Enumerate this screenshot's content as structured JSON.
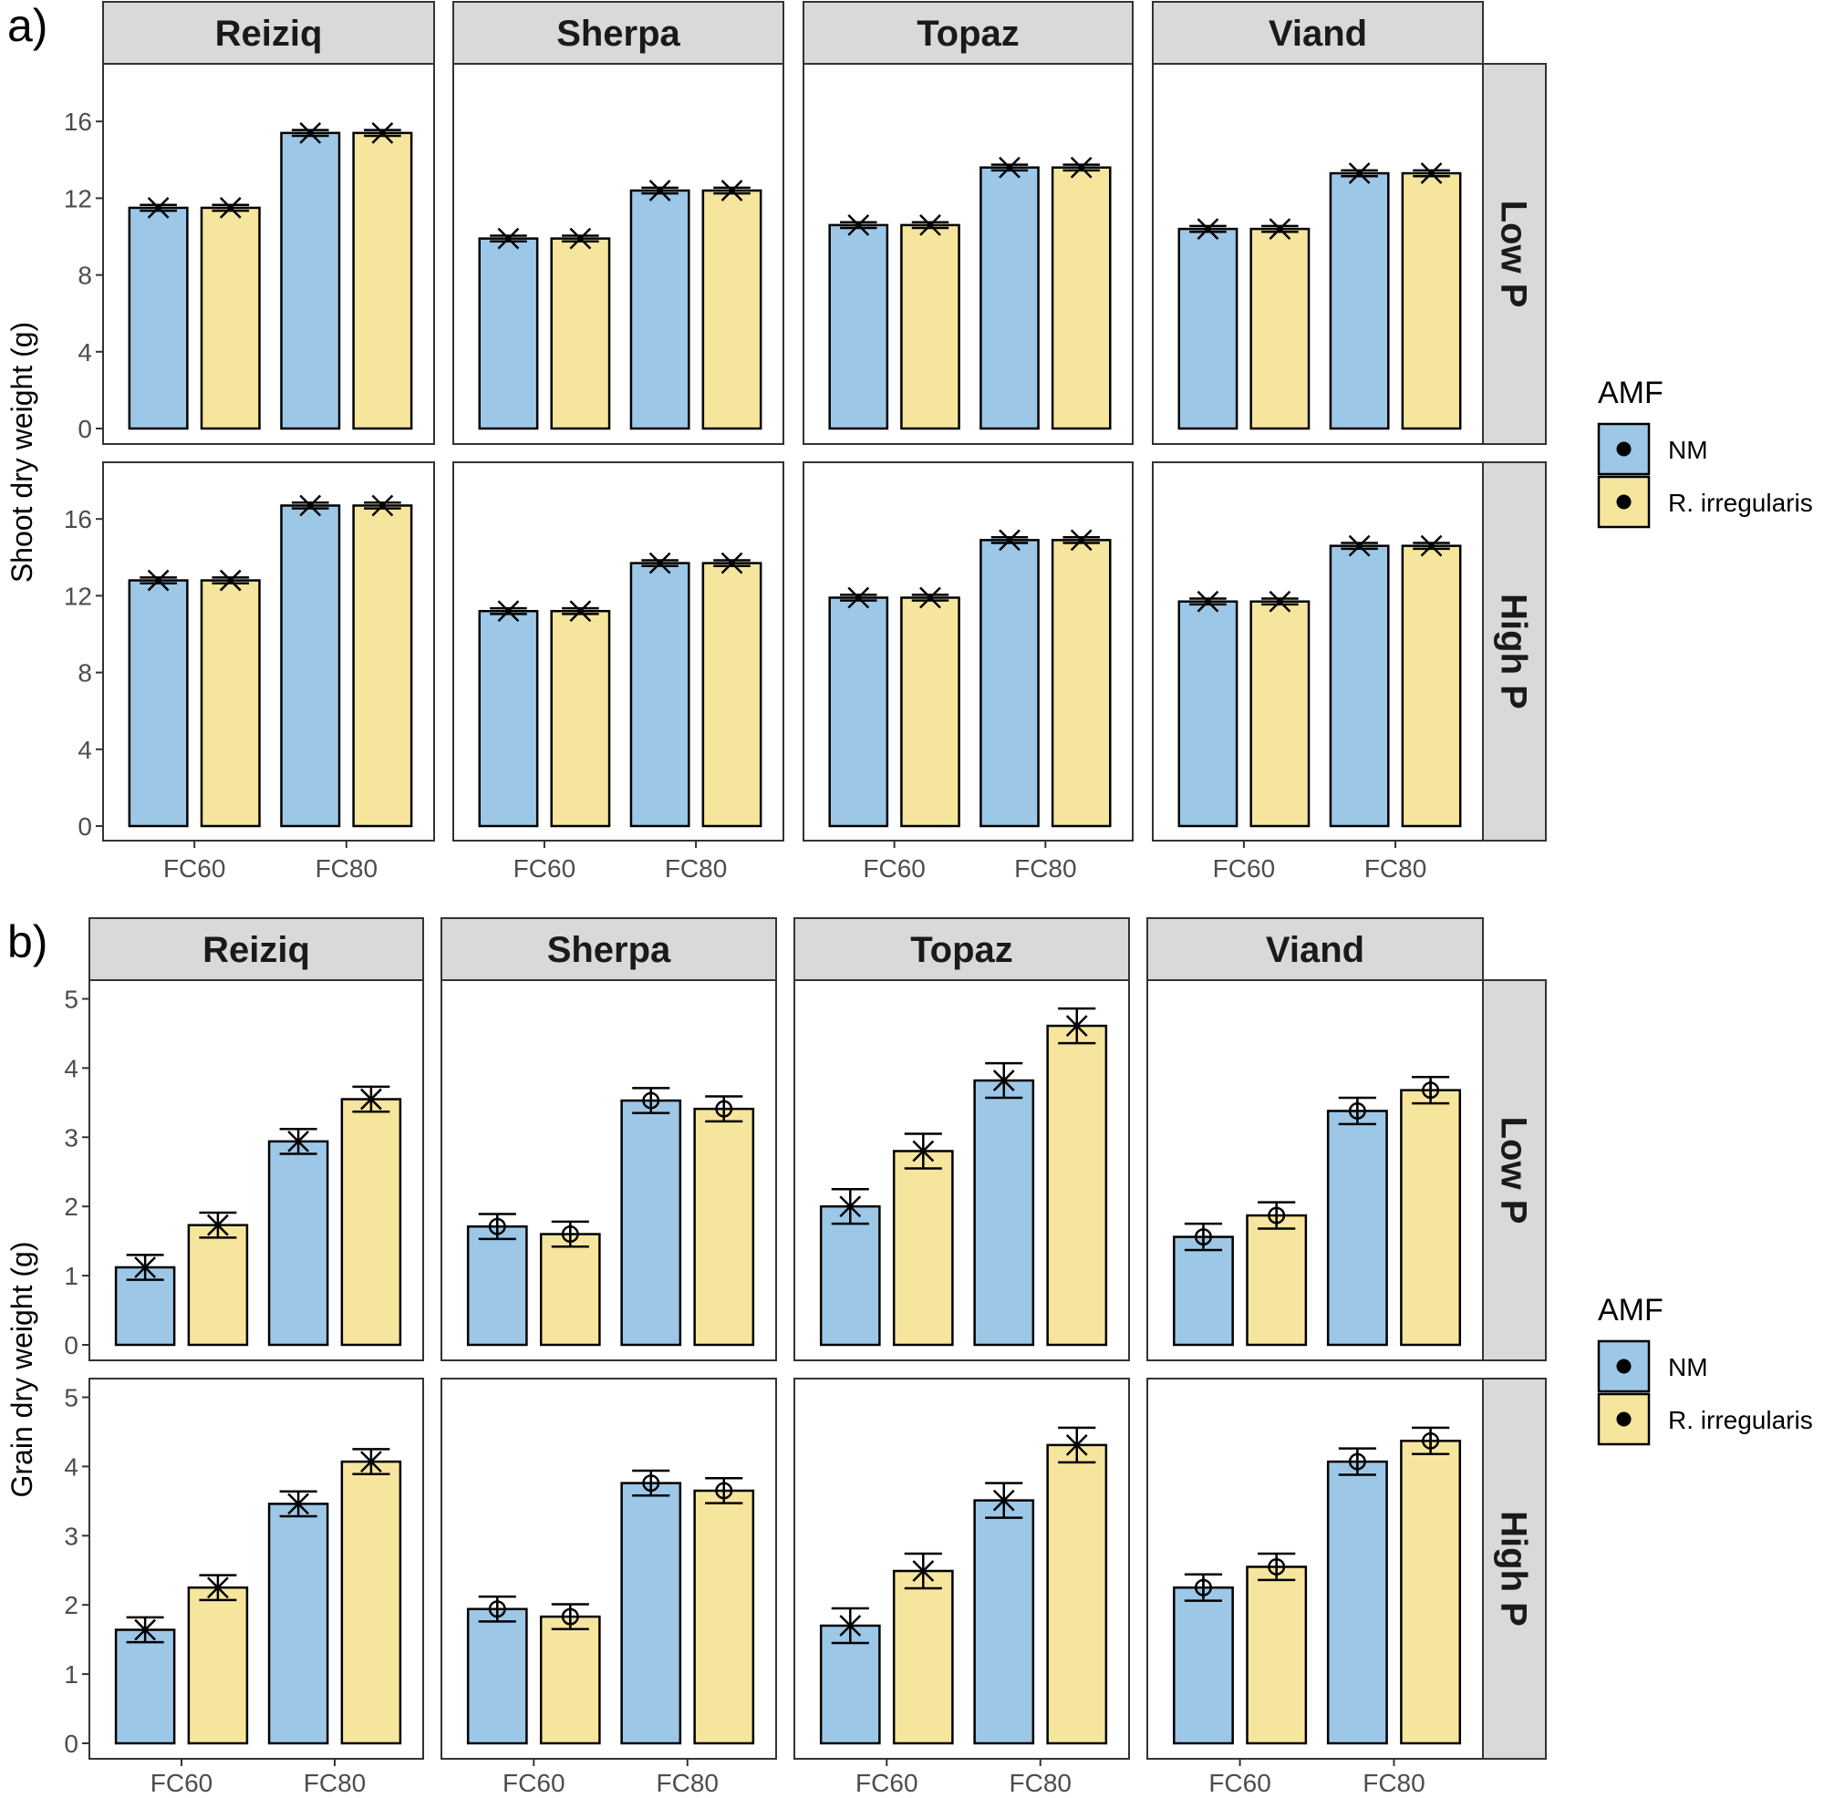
{
  "chart_data": [
    {
      "type": "bar",
      "panel_label": "a)",
      "ylabel": "Shoot dry weight (g)",
      "ylim": [
        0,
        18.7
      ],
      "yticks": [
        0,
        4,
        8,
        12,
        16
      ],
      "categories": [
        "FC60",
        "FC80"
      ],
      "columns": [
        "Reiziq",
        "Sherpa",
        "Topaz",
        "Viand"
      ],
      "rows": [
        "Low P",
        "High P"
      ],
      "marker": "x",
      "legend": {
        "title": "AMF",
        "entries": [
          "NM",
          "R. irregularis"
        ]
      },
      "panels": [
        {
          "row": "Low P",
          "column": "Reiziq",
          "series": [
            {
              "name": "NM",
              "values": [
                11.5,
                15.4
              ],
              "errors": [
                0.15,
                0.15
              ]
            },
            {
              "name": "R. irregularis",
              "values": [
                11.5,
                15.4
              ],
              "errors": [
                0.15,
                0.15
              ]
            }
          ]
        },
        {
          "row": "Low P",
          "column": "Sherpa",
          "series": [
            {
              "name": "NM",
              "values": [
                9.9,
                12.4
              ],
              "errors": [
                0.15,
                0.15
              ]
            },
            {
              "name": "R. irregularis",
              "values": [
                9.9,
                12.4
              ],
              "errors": [
                0.15,
                0.15
              ]
            }
          ]
        },
        {
          "row": "Low P",
          "column": "Topaz",
          "series": [
            {
              "name": "NM",
              "values": [
                10.6,
                13.6
              ],
              "errors": [
                0.15,
                0.15
              ]
            },
            {
              "name": "R. irregularis",
              "values": [
                10.6,
                13.6
              ],
              "errors": [
                0.15,
                0.15
              ]
            }
          ]
        },
        {
          "row": "Low P",
          "column": "Viand",
          "series": [
            {
              "name": "NM",
              "values": [
                10.4,
                13.3
              ],
              "errors": [
                0.15,
                0.15
              ]
            },
            {
              "name": "R. irregularis",
              "values": [
                10.4,
                13.3
              ],
              "errors": [
                0.15,
                0.15
              ]
            }
          ]
        },
        {
          "row": "High P",
          "column": "Reiziq",
          "series": [
            {
              "name": "NM",
              "values": [
                12.8,
                16.7
              ],
              "errors": [
                0.15,
                0.15
              ]
            },
            {
              "name": "R. irregularis",
              "values": [
                12.8,
                16.7
              ],
              "errors": [
                0.15,
                0.15
              ]
            }
          ]
        },
        {
          "row": "High P",
          "column": "Sherpa",
          "series": [
            {
              "name": "NM",
              "values": [
                11.2,
                13.7
              ],
              "errors": [
                0.15,
                0.15
              ]
            },
            {
              "name": "R. irregularis",
              "values": [
                11.2,
                13.7
              ],
              "errors": [
                0.15,
                0.15
              ]
            }
          ]
        },
        {
          "row": "High P",
          "column": "Topaz",
          "series": [
            {
              "name": "NM",
              "values": [
                11.9,
                14.9
              ],
              "errors": [
                0.15,
                0.15
              ]
            },
            {
              "name": "R. irregularis",
              "values": [
                11.9,
                14.9
              ],
              "errors": [
                0.15,
                0.15
              ]
            }
          ]
        },
        {
          "row": "High P",
          "column": "Viand",
          "series": [
            {
              "name": "NM",
              "values": [
                11.7,
                14.6
              ],
              "errors": [
                0.15,
                0.15
              ]
            },
            {
              "name": "R. irregularis",
              "values": [
                11.7,
                14.6
              ],
              "errors": [
                0.15,
                0.15
              ]
            }
          ]
        }
      ]
    },
    {
      "type": "bar",
      "panel_label": "b)",
      "ylabel": "Grain dry weight (g)",
      "ylim": [
        0,
        5.2
      ],
      "yticks": [
        0,
        1,
        2,
        3,
        4,
        5
      ],
      "categories": [
        "FC60",
        "FC80"
      ],
      "columns": [
        "Reiziq",
        "Sherpa",
        "Topaz",
        "Viand"
      ],
      "rows": [
        "Low P",
        "High P"
      ],
      "markers_by_column": [
        "x",
        "o",
        "x",
        "o"
      ],
      "legend": {
        "title": "AMF",
        "entries": [
          "NM",
          "R. irregularis"
        ]
      },
      "panels": [
        {
          "row": "Low P",
          "column": "Reiziq",
          "series": [
            {
              "name": "NM",
              "values": [
                1.12,
                2.94
              ],
              "errors": [
                0.18,
                0.18
              ]
            },
            {
              "name": "R. irregularis",
              "values": [
                1.73,
                3.55
              ],
              "errors": [
                0.18,
                0.18
              ]
            }
          ]
        },
        {
          "row": "Low P",
          "column": "Sherpa",
          "series": [
            {
              "name": "NM",
              "values": [
                1.71,
                3.53
              ],
              "errors": [
                0.18,
                0.18
              ]
            },
            {
              "name": "R. irregularis",
              "values": [
                1.6,
                3.41
              ],
              "errors": [
                0.18,
                0.18
              ]
            }
          ]
        },
        {
          "row": "Low P",
          "column": "Topaz",
          "series": [
            {
              "name": "NM",
              "values": [
                2.0,
                3.82
              ],
              "errors": [
                0.25,
                0.25
              ]
            },
            {
              "name": "R. irregularis",
              "values": [
                2.8,
                4.61
              ],
              "errors": [
                0.25,
                0.25
              ]
            }
          ]
        },
        {
          "row": "Low P",
          "column": "Viand",
          "series": [
            {
              "name": "NM",
              "values": [
                1.56,
                3.38
              ],
              "errors": [
                0.19,
                0.19
              ]
            },
            {
              "name": "R. irregularis",
              "values": [
                1.87,
                3.68
              ],
              "errors": [
                0.19,
                0.19
              ]
            }
          ]
        },
        {
          "row": "High P",
          "column": "Reiziq",
          "series": [
            {
              "name": "NM",
              "values": [
                1.64,
                3.46
              ],
              "errors": [
                0.18,
                0.18
              ]
            },
            {
              "name": "R. irregularis",
              "values": [
                2.25,
                4.07
              ],
              "errors": [
                0.18,
                0.18
              ]
            }
          ]
        },
        {
          "row": "High P",
          "column": "Sherpa",
          "series": [
            {
              "name": "NM",
              "values": [
                1.94,
                3.76
              ],
              "errors": [
                0.18,
                0.18
              ]
            },
            {
              "name": "R. irregularis",
              "values": [
                1.83,
                3.65
              ],
              "errors": [
                0.18,
                0.18
              ]
            }
          ]
        },
        {
          "row": "High P",
          "column": "Topaz",
          "series": [
            {
              "name": "NM",
              "values": [
                1.7,
                3.51
              ],
              "errors": [
                0.25,
                0.25
              ]
            },
            {
              "name": "R. irregularis",
              "values": [
                2.49,
                4.31
              ],
              "errors": [
                0.25,
                0.25
              ]
            }
          ]
        },
        {
          "row": "High P",
          "column": "Viand",
          "series": [
            {
              "name": "NM",
              "values": [
                2.25,
                4.07
              ],
              "errors": [
                0.19,
                0.19
              ]
            },
            {
              "name": "R. irregularis",
              "values": [
                2.55,
                4.37
              ],
              "errors": [
                0.19,
                0.19
              ]
            }
          ]
        }
      ]
    }
  ],
  "colors": {
    "NM": "#9dc7e7",
    "R. irregularis": "#f6e59c",
    "strip": "#d9d9d9"
  }
}
